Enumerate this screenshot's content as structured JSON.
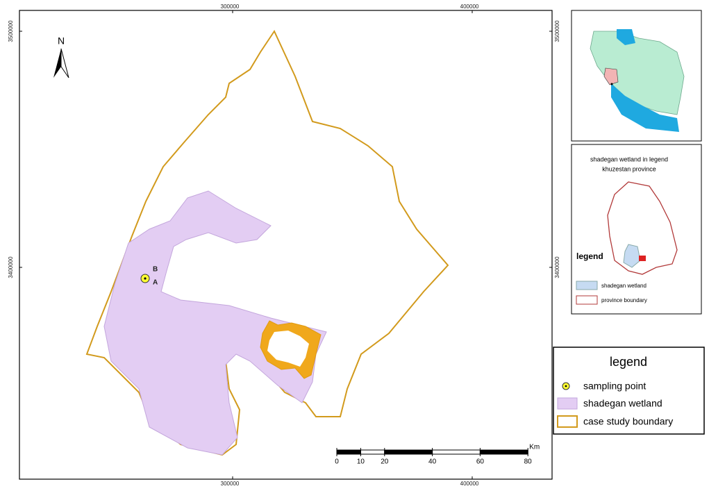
{
  "map": {
    "north_label": "N",
    "easting_labels": [
      300000,
      400000
    ],
    "northing_labels": [
      3500000,
      3400000
    ],
    "point_labels": [
      "B",
      "A"
    ],
    "scale_bar": {
      "unit": "Km",
      "ticks": [
        0,
        10,
        20,
        40,
        60,
        80
      ]
    }
  },
  "inset": {
    "title": "shadegan wetland in legend",
    "subtitle": "khuzestan province",
    "legend_title": "legend",
    "items": [
      "shadegan wetland",
      "province boundary"
    ]
  },
  "legend": {
    "title": "legend",
    "items": [
      "sampling point",
      "shadegan wetland",
      "case study boundary"
    ]
  }
}
